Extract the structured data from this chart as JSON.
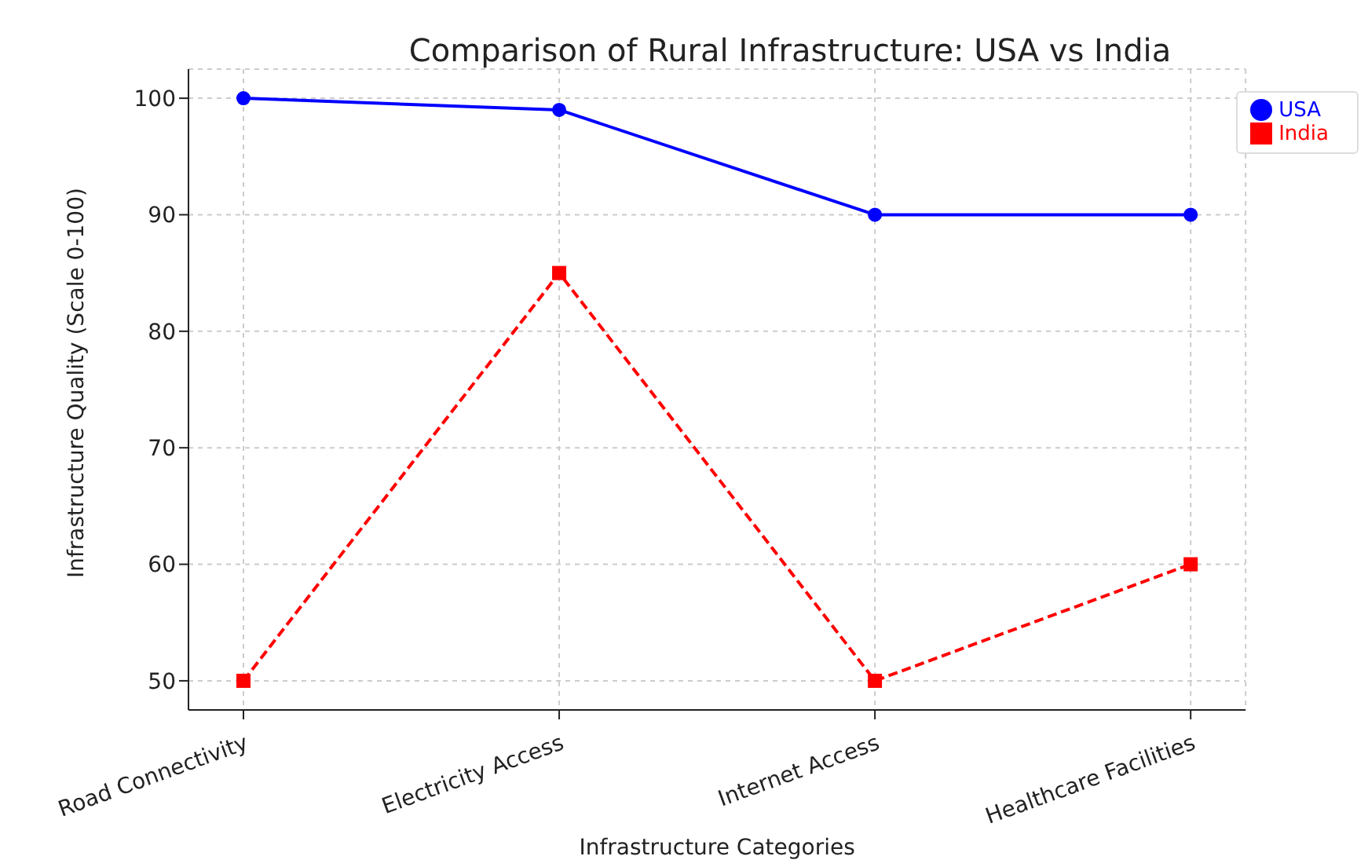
{
  "chart_data": {
    "type": "line",
    "title": "Comparison of Rural Infrastructure: USA vs India",
    "xlabel": "Infrastructure Categories",
    "ylabel": "Infrastructure Quality (Scale 0-100)",
    "categories": [
      "Road Connectivity",
      "Electricity Access",
      "Internet Access",
      "Healthcare Facilities"
    ],
    "series": [
      {
        "name": "USA",
        "color": "#0000ff",
        "values": [
          100,
          99,
          90,
          90
        ],
        "marker": "circle",
        "line_style": "solid"
      },
      {
        "name": "India",
        "color": "#ff0000",
        "values": [
          50,
          85,
          50,
          60
        ],
        "marker": "square",
        "line_style": "dashed"
      }
    ],
    "ylim": [
      47.5,
      102.5
    ],
    "yticks": [
      50,
      60,
      70,
      80,
      90,
      100
    ],
    "grid": true,
    "legend": "top right"
  }
}
